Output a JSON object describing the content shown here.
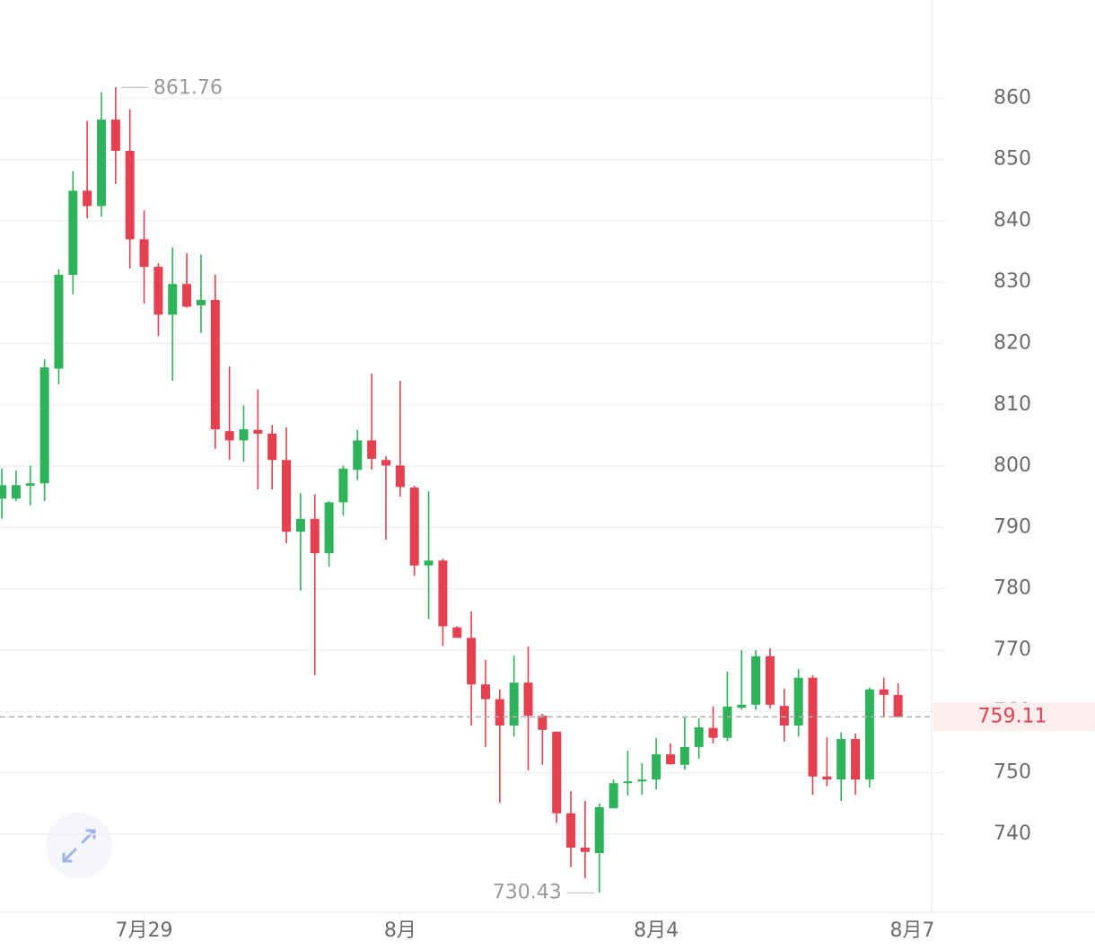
{
  "chart_data": {
    "type": "candlestick",
    "open": [
      794.7,
      794.7,
      796.8,
      797.2,
      815.9,
      831.2,
      844.9,
      842.4,
      856.5,
      851.4,
      837.0,
      832.5,
      824.7,
      829.7,
      826.2,
      827.1,
      805.7,
      804.2,
      805.9,
      805.3,
      801.0,
      789.3,
      791.4,
      785.8,
      794.1,
      799.4,
      804.2,
      801.0,
      800.1,
      796.5,
      783.8,
      784.6,
      773.7,
      772.0,
      764.4,
      762.0,
      757.7,
      764.7,
      759.3,
      756.7,
      743.4,
      737.8,
      736.9,
      744.2,
      748.3,
      748.6,
      748.9,
      753.0,
      751.3,
      754.2,
      757.3,
      755.7,
      760.6,
      761.1,
      769.0,
      760.9,
      757.7,
      765.5,
      749.4,
      748.9,
      755.5,
      748.9,
      763.6,
      762.7
    ],
    "high": [
      799.6,
      799.3,
      800.1,
      817.4,
      832.1,
      848.1,
      856.3,
      861.0,
      861.76,
      858.2,
      841.7,
      833.1,
      835.7,
      834.7,
      834.5,
      831.2,
      816.2,
      809.9,
      812.5,
      806.7,
      806.3,
      795.6,
      795.4,
      794.3,
      800.1,
      805.9,
      815.1,
      801.6,
      813.9,
      796.8,
      795.9,
      784.9,
      773.9,
      776.3,
      768.4,
      763.6,
      769.1,
      770.6,
      759.6,
      756.7,
      747.0,
      745.4,
      745.0,
      748.9,
      753.6,
      751.6,
      755.7,
      754.8,
      759.2,
      758.9,
      760.8,
      766.5,
      770.0,
      770.0,
      770.3,
      763.7,
      766.9,
      765.9,
      755.8,
      756.6,
      756.4,
      763.9,
      765.5,
      764.6
    ],
    "low": [
      791.4,
      794.3,
      793.6,
      794.3,
      813.3,
      828.0,
      840.4,
      840.7,
      846.0,
      832.2,
      826.5,
      821.2,
      813.9,
      825.8,
      821.7,
      802.8,
      801.0,
      800.7,
      796.2,
      796.2,
      787.4,
      779.7,
      765.9,
      783.6,
      791.9,
      797.7,
      799.4,
      788.0,
      795.0,
      782.1,
      775.1,
      770.7,
      772.0,
      757.7,
      754.2,
      745.1,
      755.9,
      750.4,
      751.3,
      741.8,
      734.6,
      732.8,
      730.43,
      744.2,
      746.3,
      746.4,
      747.3,
      751.3,
      750.5,
      752.3,
      754.8,
      755.2,
      760.3,
      760.3,
      760.5,
      755.1,
      755.9,
      746.4,
      747.8,
      745.4,
      746.4,
      747.6,
      759.2,
      759.0
    ],
    "close": [
      796.9,
      796.9,
      797.2,
      816.1,
      831.2,
      844.9,
      842.4,
      856.5,
      851.4,
      837.0,
      832.5,
      824.7,
      829.7,
      826.0,
      827.1,
      806.0,
      804.2,
      806.0,
      805.3,
      801.0,
      789.3,
      791.4,
      785.8,
      794.1,
      799.6,
      804.2,
      801.2,
      800.1,
      796.6,
      783.8,
      784.6,
      773.9,
      772.0,
      764.4,
      762.0,
      757.7,
      764.7,
      759.3,
      757.0,
      743.4,
      737.8,
      737.1,
      744.4,
      748.3,
      748.6,
      748.9,
      753.0,
      751.4,
      754.2,
      757.4,
      755.7,
      760.8,
      761.1,
      769.0,
      761.1,
      757.7,
      765.5,
      749.4,
      748.9,
      755.5,
      748.9,
      763.6,
      762.7,
      759.11
    ],
    "up_color": "#2fb35a",
    "down_color": "#e4404f",
    "ylim": [
      727.4,
      876.0
    ],
    "yticks": [
      740,
      750,
      760,
      770,
      780,
      790,
      800,
      810,
      820,
      830,
      840,
      850,
      860
    ],
    "xlim": [
      -0.13,
      65.36
    ],
    "xticks": [
      {
        "value": 10,
        "label": "7月29"
      },
      {
        "value": 28,
        "label": "8月"
      },
      {
        "value": 46,
        "label": "8月4"
      },
      {
        "value": 64,
        "label": "8月7"
      }
    ],
    "grid": true
  }
}
